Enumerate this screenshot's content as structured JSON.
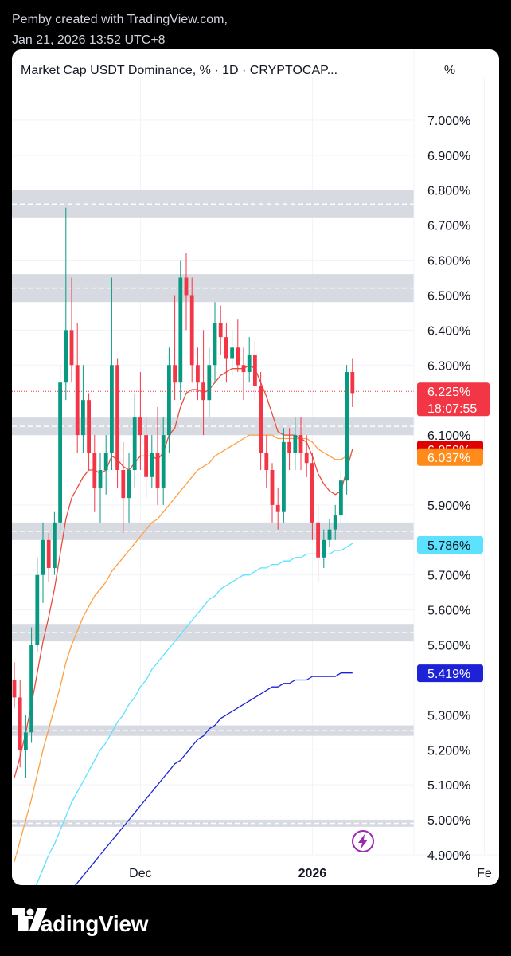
{
  "header": {
    "line1": "Pemby created with TradingView.com,",
    "line2": "Jan 21, 2026 13:52 UTC+8"
  },
  "panel": {
    "symbol": "Market Cap USDT Dominance, % · 1D · CRYPTOCAP...",
    "unit": "%"
  },
  "footer": {
    "brand": "TradingView"
  },
  "colors": {
    "up": "#089981",
    "down": "#f23645",
    "ema_short": "#e74c3c",
    "ema_mid": "#ff9f43",
    "ema_long": "#5ce1ff",
    "ema_xlong": "#1e22d6"
  },
  "chart_data": {
    "type": "candlestick",
    "ylim": [
      4.9,
      7.1
    ],
    "y_ticks": [
      "7.000%",
      "6.900%",
      "6.800%",
      "6.700%",
      "6.600%",
      "6.500%",
      "6.400%",
      "6.300%",
      "6.100%",
      "5.900%",
      "5.700%",
      "5.600%",
      "5.500%",
      "5.300%",
      "5.200%",
      "5.100%",
      "5.000%",
      "4.900%"
    ],
    "x_ticks": [
      "Dec",
      "2026",
      "Fe"
    ],
    "x_tick_index": [
      22,
      52,
      82
    ],
    "last_price": {
      "label": "6.225%",
      "countdown": "18:07:55",
      "value": 6.225
    },
    "indicator_labels": [
      {
        "label": "6.059%",
        "value": 6.059,
        "series": "ema_short",
        "bg": "#e00000",
        "fg": "#ffffff"
      },
      {
        "label": "6.037%",
        "value": 6.037,
        "series": "ema_mid",
        "bg": "#ff8c1a",
        "fg": "#ffffff"
      },
      {
        "label": "5.786%",
        "value": 5.786,
        "series": "ema_long",
        "bg": "#5ce1ff",
        "fg": "#131722"
      },
      {
        "label": "5.419%",
        "value": 5.419,
        "series": "ema_xlong",
        "bg": "#1e22d6",
        "fg": "#ffffff"
      }
    ],
    "zones": [
      [
        6.72,
        6.8
      ],
      [
        6.48,
        6.56
      ],
      [
        6.1,
        6.15
      ],
      [
        5.8,
        5.85
      ],
      [
        5.51,
        5.56
      ],
      [
        5.24,
        5.27
      ],
      [
        4.98,
        5.0
      ]
    ],
    "candles": [
      [
        5.4,
        5.45,
        5.32,
        5.35
      ],
      [
        5.35,
        5.4,
        5.15,
        5.2
      ],
      [
        5.2,
        5.3,
        5.12,
        5.25
      ],
      [
        5.25,
        5.55,
        5.22,
        5.5
      ],
      [
        5.5,
        5.75,
        5.48,
        5.7
      ],
      [
        5.7,
        5.85,
        5.62,
        5.8
      ],
      [
        5.8,
        5.82,
        5.68,
        5.72
      ],
      [
        5.72,
        5.88,
        5.7,
        5.85
      ],
      [
        5.85,
        6.3,
        5.82,
        6.25
      ],
      [
        6.25,
        6.75,
        6.2,
        6.4
      ],
      [
        6.4,
        6.55,
        6.25,
        6.3
      ],
      [
        6.3,
        6.42,
        6.05,
        6.1
      ],
      [
        6.1,
        6.3,
        6.05,
        6.2
      ],
      [
        6.2,
        6.22,
        6.0,
        6.05
      ],
      [
        6.05,
        6.1,
        5.88,
        5.95
      ],
      [
        5.95,
        6.05,
        5.85,
        6.0
      ],
      [
        6.0,
        6.1,
        5.93,
        6.05
      ],
      [
        6.05,
        6.55,
        6.0,
        6.3
      ],
      [
        6.3,
        6.32,
        5.95,
        6.0
      ],
      [
        6.0,
        6.08,
        5.82,
        5.92
      ],
      [
        5.92,
        6.05,
        5.85,
        6.0
      ],
      [
        6.0,
        6.22,
        5.95,
        6.15
      ],
      [
        6.15,
        6.28,
        6.0,
        6.1
      ],
      [
        6.1,
        6.15,
        5.92,
        5.98
      ],
      [
        5.98,
        6.1,
        5.95,
        6.05
      ],
      [
        6.05,
        6.18,
        5.9,
        5.95
      ],
      [
        5.95,
        6.15,
        5.9,
        6.1
      ],
      [
        6.1,
        6.35,
        6.05,
        6.3
      ],
      [
        6.3,
        6.5,
        6.2,
        6.25
      ],
      [
        6.25,
        6.6,
        6.2,
        6.55
      ],
      [
        6.55,
        6.62,
        6.4,
        6.5
      ],
      [
        6.5,
        6.55,
        6.25,
        6.3
      ],
      [
        6.3,
        6.35,
        6.2,
        6.25
      ],
      [
        6.25,
        6.4,
        6.1,
        6.2
      ],
      [
        6.2,
        6.35,
        6.15,
        6.3
      ],
      [
        6.3,
        6.48,
        6.25,
        6.42
      ],
      [
        6.42,
        6.47,
        6.33,
        6.38
      ],
      [
        6.38,
        6.42,
        6.25,
        6.32
      ],
      [
        6.32,
        6.4,
        6.27,
        6.35
      ],
      [
        6.35,
        6.43,
        6.28,
        6.3
      ],
      [
        6.3,
        6.35,
        6.2,
        6.28
      ],
      [
        6.28,
        6.38,
        6.25,
        6.33
      ],
      [
        6.33,
        6.37,
        6.2,
        6.24
      ],
      [
        6.24,
        6.28,
        6.0,
        6.05
      ],
      [
        6.05,
        6.1,
        5.95,
        6.0
      ],
      [
        6.0,
        6.02,
        5.85,
        5.9
      ],
      [
        5.9,
        5.95,
        5.83,
        5.88
      ],
      [
        5.88,
        6.12,
        5.85,
        6.08
      ],
      [
        6.08,
        6.12,
        6.0,
        6.05
      ],
      [
        6.05,
        6.15,
        6.0,
        6.1
      ],
      [
        6.1,
        6.15,
        6.0,
        6.05
      ],
      [
        6.05,
        6.1,
        5.98,
        6.02
      ],
      [
        6.02,
        6.05,
        5.8,
        5.85
      ],
      [
        5.85,
        5.9,
        5.68,
        5.75
      ],
      [
        5.75,
        5.83,
        5.72,
        5.8
      ],
      [
        5.8,
        5.86,
        5.78,
        5.83
      ],
      [
        5.83,
        5.9,
        5.8,
        5.87
      ],
      [
        5.87,
        6.0,
        5.85,
        5.97
      ],
      [
        5.97,
        6.3,
        5.93,
        6.28
      ],
      [
        6.28,
        6.32,
        6.18,
        6.22
      ]
    ],
    "ema_short": [
      5.12,
      5.18,
      5.25,
      5.33,
      5.42,
      5.51,
      5.58,
      5.66,
      5.76,
      5.86,
      5.92,
      5.95,
      5.98,
      6.0,
      6.0,
      5.99,
      6.0,
      6.04,
      6.03,
      6.01,
      6.0,
      6.02,
      6.04,
      6.04,
      6.04,
      6.03,
      6.05,
      6.1,
      6.12,
      6.18,
      6.22,
      6.23,
      6.23,
      6.22,
      6.23,
      6.25,
      6.27,
      6.28,
      6.29,
      6.29,
      6.29,
      6.3,
      6.29,
      6.25,
      6.21,
      6.16,
      6.11,
      6.1,
      6.1,
      6.1,
      6.09,
      6.08,
      6.04,
      5.99,
      5.96,
      5.94,
      5.93,
      5.94,
      6.0,
      6.06
    ],
    "ema_mid": [
      4.88,
      4.94,
      5.0,
      5.06,
      5.13,
      5.2,
      5.26,
      5.32,
      5.38,
      5.45,
      5.5,
      5.54,
      5.58,
      5.61,
      5.64,
      5.66,
      5.68,
      5.71,
      5.73,
      5.75,
      5.77,
      5.79,
      5.81,
      5.83,
      5.85,
      5.86,
      5.88,
      5.9,
      5.92,
      5.94,
      5.96,
      5.98,
      6.0,
      6.01,
      6.02,
      6.04,
      6.05,
      6.06,
      6.07,
      6.08,
      6.09,
      6.1,
      6.1,
      6.1,
      6.1,
      6.1,
      6.09,
      6.09,
      6.09,
      6.09,
      6.09,
      6.09,
      6.08,
      6.06,
      6.05,
      6.04,
      6.03,
      6.03,
      6.04,
      6.04
    ],
    "ema_long": [
      4.7,
      4.73,
      4.76,
      4.79,
      4.82,
      4.86,
      4.9,
      4.93,
      4.97,
      5.01,
      5.05,
      5.08,
      5.11,
      5.14,
      5.17,
      5.2,
      5.22,
      5.25,
      5.28,
      5.3,
      5.33,
      5.35,
      5.38,
      5.4,
      5.43,
      5.45,
      5.47,
      5.49,
      5.51,
      5.53,
      5.55,
      5.57,
      5.59,
      5.61,
      5.63,
      5.64,
      5.66,
      5.67,
      5.68,
      5.69,
      5.7,
      5.7,
      5.71,
      5.72,
      5.72,
      5.73,
      5.73,
      5.74,
      5.74,
      5.75,
      5.75,
      5.76,
      5.76,
      5.76,
      5.76,
      5.76,
      5.77,
      5.77,
      5.78,
      5.79
    ],
    "ema_xlong": [
      4.6,
      4.62,
      4.64,
      4.66,
      4.68,
      4.7,
      4.72,
      4.74,
      4.76,
      4.78,
      4.8,
      4.82,
      4.84,
      4.86,
      4.88,
      4.9,
      4.92,
      4.94,
      4.96,
      4.98,
      5.0,
      5.02,
      5.04,
      5.06,
      5.08,
      5.1,
      5.12,
      5.14,
      5.16,
      5.17,
      5.19,
      5.21,
      5.23,
      5.24,
      5.26,
      5.27,
      5.29,
      5.3,
      5.31,
      5.32,
      5.33,
      5.34,
      5.35,
      5.36,
      5.37,
      5.38,
      5.38,
      5.39,
      5.39,
      5.4,
      5.4,
      5.4,
      5.41,
      5.41,
      5.41,
      5.41,
      5.41,
      5.42,
      5.42,
      5.42
    ],
    "grid": true
  }
}
